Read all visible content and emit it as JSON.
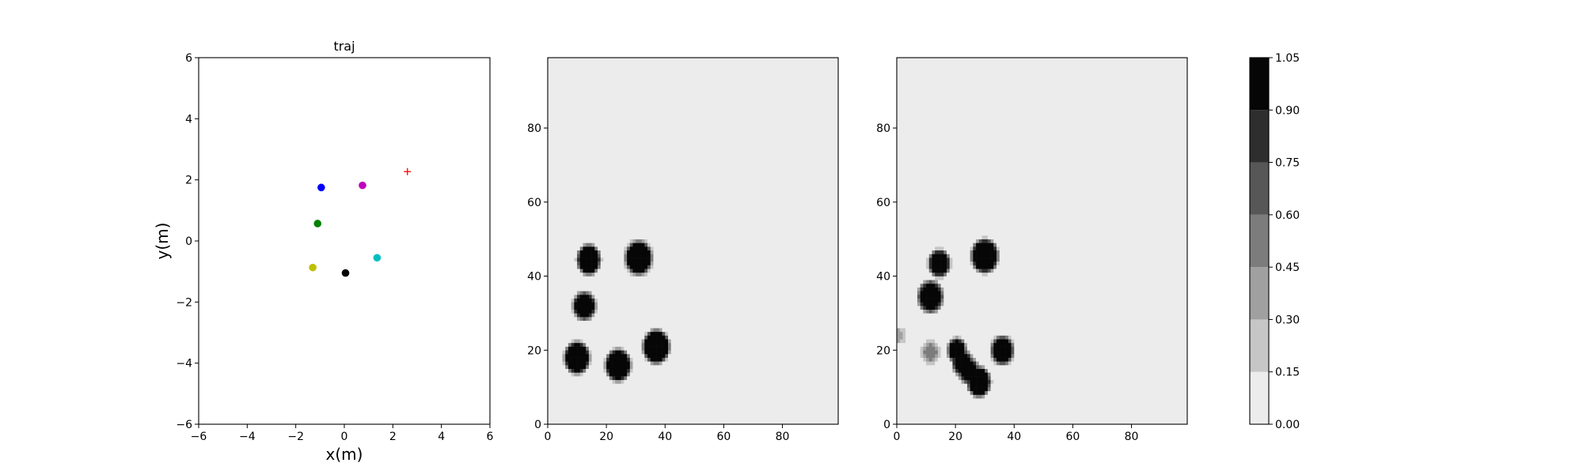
{
  "chart_data": [
    {
      "type": "scatter",
      "title": "traj",
      "xlabel": "x(m)",
      "ylabel": "y(m)",
      "xlim": [
        -6,
        6
      ],
      "ylim": [
        -6,
        6
      ],
      "xticks": [
        -6,
        -4,
        -2,
        0,
        2,
        4,
        6
      ],
      "yticks": [
        -6,
        -4,
        -2,
        0,
        2,
        4,
        6
      ],
      "xtick_labels": [
        "−6",
        "−4",
        "−2",
        "0",
        "2",
        "4",
        "6"
      ],
      "ytick_labels": [
        "−6",
        "−4",
        "−2",
        "0",
        "2",
        "4",
        "6"
      ],
      "grid": false,
      "points": [
        {
          "x": -0.95,
          "y": 1.75,
          "color": "#0000ff",
          "marker": "circle"
        },
        {
          "x": 0.75,
          "y": 1.82,
          "color": "#bf00bf",
          "marker": "circle"
        },
        {
          "x": -1.1,
          "y": 0.57,
          "color": "#008000",
          "marker": "circle"
        },
        {
          "x": 1.35,
          "y": -0.55,
          "color": "#00bfbf",
          "marker": "circle"
        },
        {
          "x": -1.3,
          "y": -0.87,
          "color": "#bfbf00",
          "marker": "circle"
        },
        {
          "x": 0.05,
          "y": -1.05,
          "color": "#000000",
          "marker": "circle"
        },
        {
          "x": 2.6,
          "y": 2.27,
          "color": "#ff0000",
          "marker": "plus"
        }
      ]
    },
    {
      "type": "heatmap",
      "xlim": [
        0,
        99
      ],
      "ylim": [
        0,
        99
      ],
      "xticks": [
        0,
        20,
        40,
        60,
        80
      ],
      "yticks": [
        0,
        20,
        40,
        60,
        80
      ],
      "background_level": 0.05,
      "blobs": [
        {
          "x": 14,
          "y": 44.5,
          "r": 3.2,
          "peak": 1.0
        },
        {
          "x": 31,
          "y": 45,
          "r": 3.8,
          "peak": 1.0
        },
        {
          "x": 12.5,
          "y": 32,
          "r": 3.0,
          "peak": 1.0
        },
        {
          "x": 10,
          "y": 18,
          "r": 3.5,
          "peak": 1.0
        },
        {
          "x": 24,
          "y": 16,
          "r": 3.5,
          "peak": 1.0
        },
        {
          "x": 37,
          "y": 21,
          "r": 3.7,
          "peak": 1.0
        }
      ]
    },
    {
      "type": "heatmap",
      "xlim": [
        0,
        99
      ],
      "ylim": [
        0,
        99
      ],
      "xticks": [
        0,
        20,
        40,
        60,
        80
      ],
      "yticks": [
        0,
        20,
        40,
        60,
        80
      ],
      "background_level": 0.05,
      "blobs": [
        {
          "x": 14.5,
          "y": 43.5,
          "r": 2.8,
          "peak": 1.0
        },
        {
          "x": 30,
          "y": 45.5,
          "r": 3.8,
          "peak": 1.0
        },
        {
          "x": 11.5,
          "y": 34.5,
          "r": 3.4,
          "peak": 1.0
        },
        {
          "x": 11.5,
          "y": 19.5,
          "r": 2.2,
          "peak": 0.45
        },
        {
          "x": 20.5,
          "y": 20,
          "r": 2.4,
          "peak": 1.0
        },
        {
          "x": 22.5,
          "y": 16.5,
          "r": 2.6,
          "peak": 1.0
        },
        {
          "x": 24.5,
          "y": 14.5,
          "r": 2.6,
          "peak": 0.95
        },
        {
          "x": 28,
          "y": 11.5,
          "r": 3.2,
          "peak": 1.0
        },
        {
          "x": 36,
          "y": 20,
          "r": 3.0,
          "peak": 1.0
        },
        {
          "x": 0.8,
          "y": 24,
          "r": 1.6,
          "peak": 0.3
        }
      ]
    },
    {
      "type": "colorbar",
      "levels": [
        0.0,
        0.15,
        0.3,
        0.45,
        0.6,
        0.75,
        0.9,
        1.05
      ],
      "tick_labels": [
        "0.00",
        "0.15",
        "0.30",
        "0.45",
        "0.60",
        "0.75",
        "0.90",
        "1.05"
      ],
      "colors": [
        "#ececec",
        "#c6c6c6",
        "#a0a0a0",
        "#7c7c7c",
        "#575757",
        "#2e2e2e",
        "#060606"
      ]
    }
  ]
}
